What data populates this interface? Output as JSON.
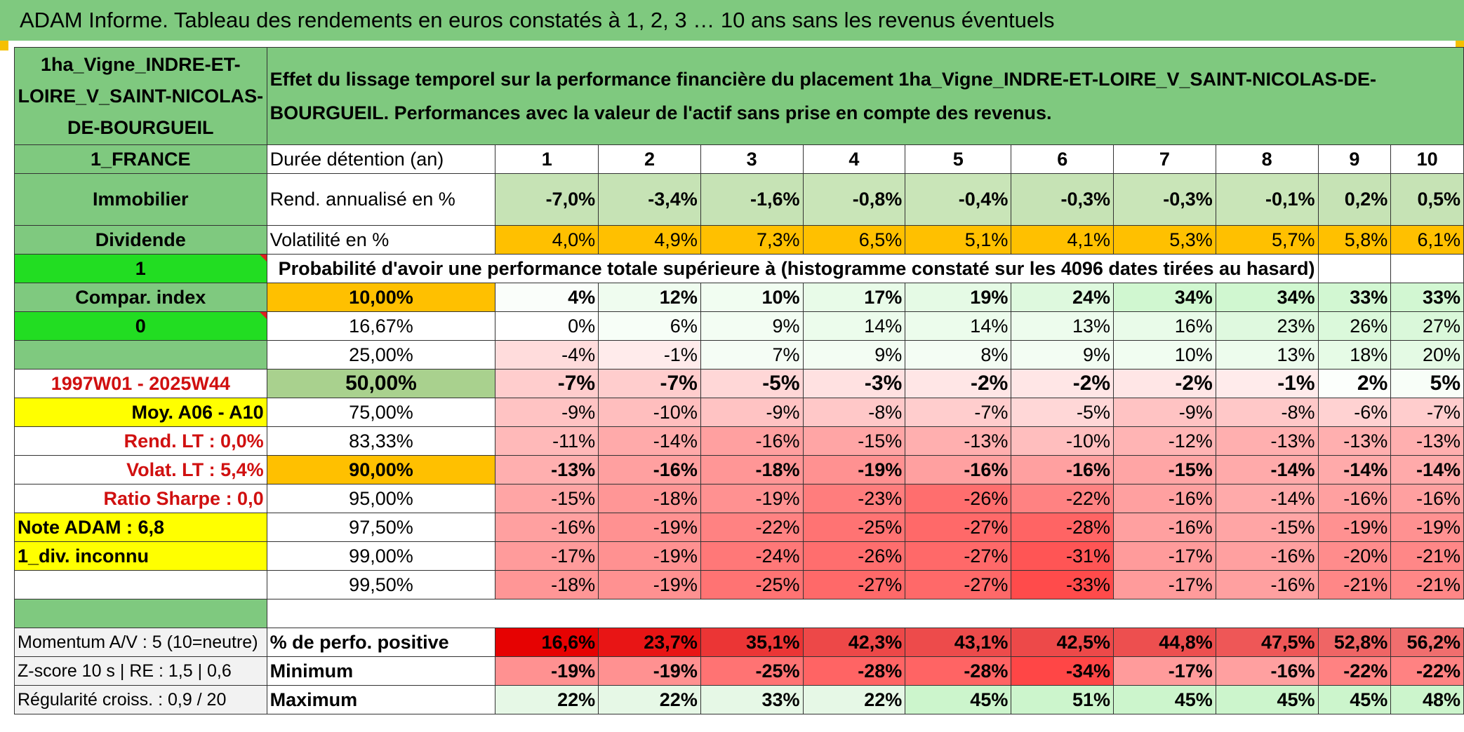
{
  "title": "ADAM Informe. Tableau des rendements en euros constatés à 1, 2, 3 … 10 ans sans les revenus éventuels",
  "colors": {
    "banner": "#7fc97f",
    "accent_yellow": "#ffff00",
    "lime": "#22dd22",
    "orange": "#ffc000",
    "text_red": "#d01010"
  },
  "left": {
    "asset_name": "1ha_Vigne_INDRE-ET-LOIRE_V_SAINT-NICOLAS-DE-BOURGUEIL",
    "country": "1_FRANCE",
    "category": "Immobilier",
    "dividend": "Dividende",
    "value_1": "1",
    "compar": "Compar. index",
    "value_0": "0",
    "period": "1997W01 - 2025W44",
    "avg": "Moy. A06 - A10",
    "rend_lt": "Rend. LT :   0,0%",
    "volat_lt": "Volat. LT :   5,4%",
    "sharpe": "Ratio Sharpe :    0,0",
    "note": "Note ADAM : 6,8",
    "div": "1_div. inconnu",
    "momentum": "Momentum A/V : 5 (10=neutre)",
    "zscore": "Z-score 10 s | RE : 1,5 | 0,6",
    "regularite": "Régularité croiss. : 0,9 / 20"
  },
  "header_text": "Effet du lissage temporel sur la performance financière du placement 1ha_Vigne_INDRE-ET-LOIRE_V_SAINT-NICOLAS-DE-BOURGUEIL. Performances avec la valeur de l'actif sans prise en compte des revenus.",
  "durations_label": "Durée détention (an)",
  "years": [
    "1",
    "2",
    "3",
    "4",
    "5",
    "6",
    "7",
    "8",
    "9",
    "10"
  ],
  "rend_label": "Rend. annualisé en %",
  "rend": [
    "-7,0%",
    "-3,4%",
    "-1,6%",
    "-0,8%",
    "-0,4%",
    "-0,3%",
    "-0,3%",
    "-0,1%",
    "0,2%",
    "0,5%"
  ],
  "vol_label": "Volatilité en %",
  "vol": [
    "4,0%",
    "4,9%",
    "7,3%",
    "6,5%",
    "5,1%",
    "4,1%",
    "5,3%",
    "5,7%",
    "5,8%",
    "6,1%"
  ],
  "prob_title": "Probabilité d'avoir une performance totale supérieure à (histogramme constaté sur les 4096 dates tirées au hasard)",
  "quantiles": [
    {
      "label": "10,00%",
      "values": [
        "4%",
        "12%",
        "10%",
        "17%",
        "19%",
        "24%",
        "34%",
        "34%",
        "33%",
        "33%"
      ]
    },
    {
      "label": "16,67%",
      "values": [
        "0%",
        "6%",
        "9%",
        "14%",
        "14%",
        "13%",
        "16%",
        "23%",
        "26%",
        "27%"
      ]
    },
    {
      "label": "25,00%",
      "values": [
        "-4%",
        "-1%",
        "7%",
        "9%",
        "8%",
        "9%",
        "10%",
        "13%",
        "18%",
        "20%"
      ]
    },
    {
      "label": "50,00%",
      "values": [
        "-7%",
        "-7%",
        "-5%",
        "-3%",
        "-2%",
        "-2%",
        "-2%",
        "-1%",
        "2%",
        "5%"
      ]
    },
    {
      "label": "75,00%",
      "values": [
        "-9%",
        "-10%",
        "-9%",
        "-8%",
        "-7%",
        "-5%",
        "-9%",
        "-8%",
        "-6%",
        "-7%"
      ]
    },
    {
      "label": "83,33%",
      "values": [
        "-11%",
        "-14%",
        "-16%",
        "-15%",
        "-13%",
        "-10%",
        "-12%",
        "-13%",
        "-13%",
        "-13%"
      ]
    },
    {
      "label": "90,00%",
      "values": [
        "-13%",
        "-16%",
        "-18%",
        "-19%",
        "-16%",
        "-16%",
        "-15%",
        "-14%",
        "-14%",
        "-14%"
      ]
    },
    {
      "label": "95,00%",
      "values": [
        "-15%",
        "-18%",
        "-19%",
        "-23%",
        "-26%",
        "-22%",
        "-16%",
        "-14%",
        "-16%",
        "-16%"
      ]
    },
    {
      "label": "97,50%",
      "values": [
        "-16%",
        "-19%",
        "-22%",
        "-25%",
        "-27%",
        "-28%",
        "-16%",
        "-15%",
        "-19%",
        "-19%"
      ]
    },
    {
      "label": "99,00%",
      "values": [
        "-17%",
        "-19%",
        "-24%",
        "-26%",
        "-27%",
        "-31%",
        "-17%",
        "-16%",
        "-20%",
        "-21%"
      ]
    },
    {
      "label": "99,50%",
      "values": [
        "-18%",
        "-19%",
        "-25%",
        "-27%",
        "-27%",
        "-33%",
        "-17%",
        "-16%",
        "-21%",
        "-21%"
      ]
    }
  ],
  "pos_label": "% de perfo. positive",
  "pos": [
    "16,6%",
    "23,7%",
    "35,1%",
    "42,3%",
    "43,1%",
    "42,5%",
    "44,8%",
    "47,5%",
    "52,8%",
    "56,2%"
  ],
  "min_label": "Minimum",
  "min": [
    "-19%",
    "-19%",
    "-25%",
    "-28%",
    "-28%",
    "-34%",
    "-17%",
    "-16%",
    "-22%",
    "-22%"
  ],
  "max_label": "Maximum",
  "max": [
    "22%",
    "22%",
    "33%",
    "22%",
    "45%",
    "51%",
    "45%",
    "45%",
    "45%",
    "48%"
  ]
}
